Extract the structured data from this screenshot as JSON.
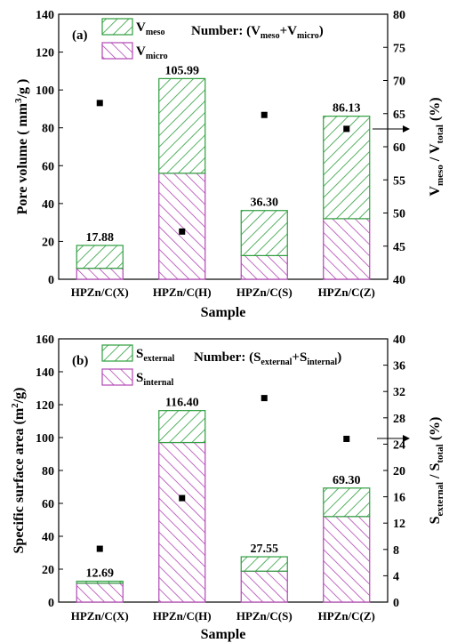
{
  "colors": {
    "top_segment": "#2e9e3e",
    "bottom_segment": "#b247b5",
    "marker": "#000000",
    "axis": "#000000"
  },
  "chart_data": [
    {
      "type": "bar",
      "panel_label": "(a)",
      "categories": [
        "HPZn/C(X)",
        "HPZn/C(H)",
        "HPZn/C(S)",
        "HPZn/C(Z)"
      ],
      "xlabel": "Sample",
      "ylabel_left": {
        "base": "Pore volume ( mm",
        "sup": "3",
        "tail": "/g )"
      },
      "ylabel_right": {
        "p1": "V",
        "s1": "meso",
        "p2": " / V",
        "s2": "total",
        "p3": " (%)"
      },
      "legend": {
        "top_series": {
          "main": "V",
          "sub": "meso"
        },
        "number_note": {
          "p1": "Number: (V",
          "s1": "meso",
          "p2": "+V",
          "s2": "micro",
          "p3": ")"
        },
        "bottom_series": {
          "main": "V",
          "sub": "micro"
        }
      },
      "ylim_left": [
        0,
        140
      ],
      "yticks_left": [
        "0",
        "20",
        "40",
        "60",
        "80",
        "100",
        "120",
        "140"
      ],
      "ylim_right": [
        40,
        80
      ],
      "yticks_right": [
        "40",
        "45",
        "50",
        "55",
        "60",
        "65",
        "70",
        "75",
        "80"
      ],
      "series": [
        {
          "stack": "bottom",
          "values": [
            5.8,
            56.0,
            12.5,
            32.0
          ]
        },
        {
          "stack": "top",
          "values": [
            12.08,
            49.99,
            23.8,
            54.13
          ]
        }
      ],
      "totals": [
        17.88,
        105.99,
        36.3,
        86.13
      ],
      "total_labels": [
        "17.88",
        "105.99",
        "36.30",
        "86.13"
      ],
      "ratio_points": [
        66.6,
        47.2,
        64.8,
        62.7
      ],
      "arrow_marker_index": 3
    },
    {
      "type": "bar",
      "panel_label": "(b)",
      "categories": [
        "HPZn/C(X)",
        "HPZn/C(H)",
        "HPZn/C(S)",
        "HPZn/C(Z)"
      ],
      "xlabel": "Sample",
      "ylabel_left": {
        "base": "Specific surface area (m",
        "sup": "2",
        "tail": "/g)"
      },
      "ylabel_right": {
        "p1": "S",
        "s1": "external",
        "p2": " / S",
        "s2": "total",
        "p3": " (%)"
      },
      "legend": {
        "top_series": {
          "main": "S",
          "sub": "external"
        },
        "number_note": {
          "p1": "Number: (S",
          "s1": "external",
          "p2": "+S",
          "s2": "internal",
          "p3": ")"
        },
        "bottom_series": {
          "main": "S",
          "sub": "internal"
        }
      },
      "ylim_left": [
        0,
        160
      ],
      "yticks_left": [
        "0",
        "20",
        "40",
        "60",
        "80",
        "100",
        "120",
        "140",
        "160"
      ],
      "ylim_right": [
        0,
        40
      ],
      "yticks_right": [
        "0",
        "4",
        "8",
        "12",
        "16",
        "20",
        "24",
        "28",
        "32",
        "36",
        "40"
      ],
      "series": [
        {
          "stack": "bottom",
          "values": [
            11.5,
            97.0,
            18.8,
            52.0
          ]
        },
        {
          "stack": "top",
          "values": [
            1.19,
            19.4,
            8.75,
            17.3
          ]
        }
      ],
      "totals": [
        12.69,
        116.4,
        27.55,
        69.3
      ],
      "total_labels": [
        "12.69",
        "116.40",
        "27.55",
        "69.30"
      ],
      "ratio_points": [
        8.1,
        15.8,
        31.0,
        24.8
      ],
      "arrow_marker_index": 3
    }
  ]
}
